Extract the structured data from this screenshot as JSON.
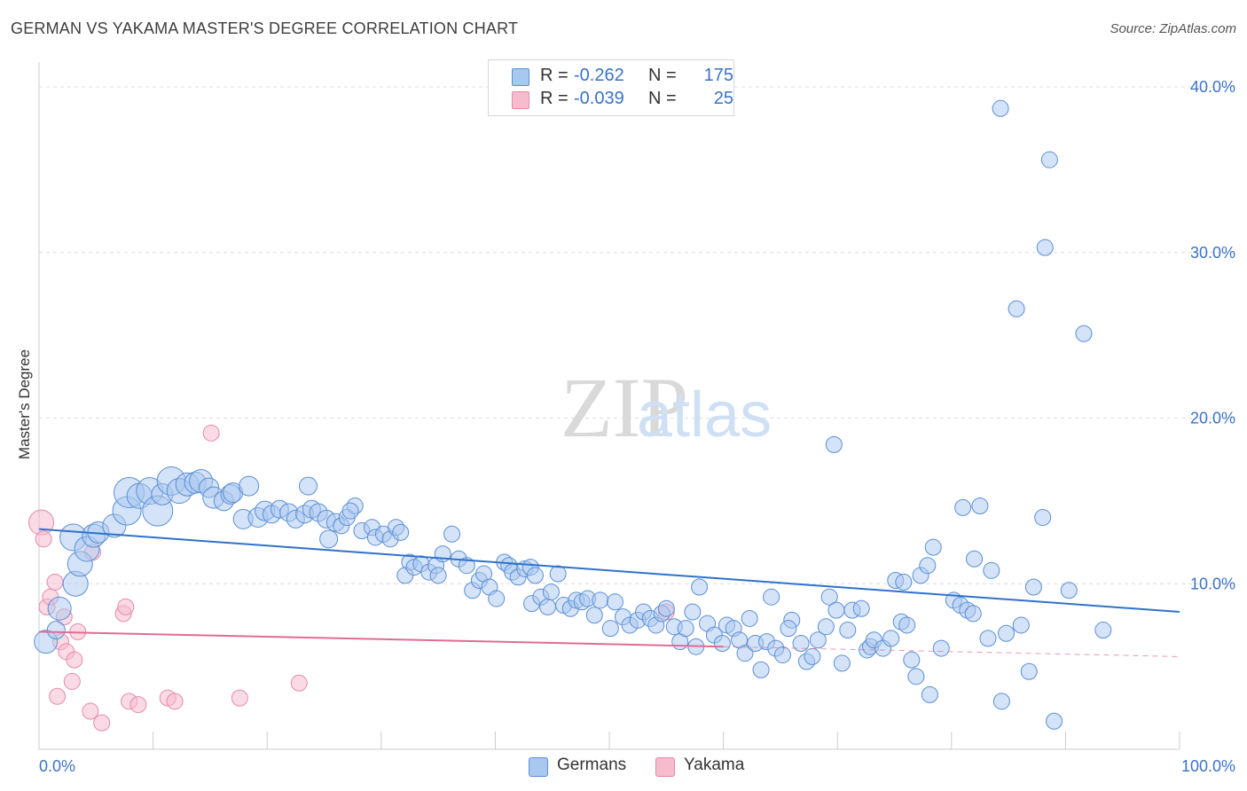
{
  "title": "GERMAN VS YAKAMA MASTER'S DEGREE CORRELATION CHART",
  "source": "Source: ZipAtlas.com",
  "watermark": {
    "zip": "ZIP",
    "atlas": "atlas"
  },
  "colors": {
    "germans_fill": "#a9c8f0",
    "germans_stroke": "#5b8fd6",
    "germans_line": "#2f72cc",
    "yakama_fill": "#f6bccd",
    "yakama_stroke": "#e68aa8",
    "yakama_line": "#e06c94",
    "tick_label": "#3a72c9",
    "grid": "#dcdcdc"
  },
  "legend": {
    "rows": [
      {
        "r_label": "R =",
        "r_value": "-0.262",
        "n_label": "N =",
        "n_value": "175"
      },
      {
        "r_label": "R =",
        "r_value": "-0.039",
        "n_label": "N =",
        "n_value": "25"
      }
    ]
  },
  "bottom_legend": {
    "germans": "Germans",
    "yakama": "Yakama"
  },
  "chart_data": {
    "type": "scatter",
    "title": "GERMAN VS YAKAMA MASTER'S DEGREE CORRELATION CHART",
    "xlabel": "",
    "ylabel": "Master's Degree",
    "xlim": [
      0,
      100
    ],
    "ylim": [
      0,
      41.5
    ],
    "x_tick_labels": [
      "0.0%",
      "100.0%"
    ],
    "y_ticks": [
      10,
      20,
      30,
      40
    ],
    "y_tick_labels": [
      "10.0%",
      "20.0%",
      "30.0%",
      "40.0%"
    ],
    "grid": "horizontal dashed",
    "legend_position": "top-center",
    "series": [
      {
        "name": "Germans",
        "r": -0.262,
        "n": 175,
        "trend": {
          "x": [
            0,
            100
          ],
          "y": [
            13.3,
            8.3
          ]
        },
        "points": [
          [
            0.6,
            6.5,
            13
          ],
          [
            1.5,
            7.2,
            10
          ],
          [
            1.8,
            8.5,
            13
          ],
          [
            3.0,
            12.8,
            15
          ],
          [
            3.2,
            10.0,
            14
          ],
          [
            3.6,
            11.2,
            14
          ],
          [
            4.2,
            12.1,
            14
          ],
          [
            4.8,
            12.9,
            13
          ],
          [
            5.2,
            13.1,
            12
          ],
          [
            6.6,
            13.5,
            13
          ],
          [
            7.7,
            14.4,
            16
          ],
          [
            7.9,
            15.5,
            17
          ],
          [
            8.8,
            15.3,
            14
          ],
          [
            9.7,
            15.6,
            15
          ],
          [
            10.4,
            14.4,
            17
          ],
          [
            10.8,
            15.4,
            12
          ],
          [
            11.6,
            16.2,
            16
          ],
          [
            12.3,
            15.6,
            14
          ],
          [
            13.0,
            16.0,
            13
          ],
          [
            13.7,
            16.1,
            12
          ],
          [
            14.2,
            16.2,
            13
          ],
          [
            14.9,
            15.8,
            11
          ],
          [
            15.3,
            15.2,
            12
          ],
          [
            16.2,
            15.0,
            11
          ],
          [
            16.8,
            15.4,
            11
          ],
          [
            17.0,
            15.5,
            11
          ],
          [
            18.4,
            15.9,
            11
          ],
          [
            17.9,
            13.9,
            11
          ],
          [
            19.2,
            14.0,
            11
          ],
          [
            19.8,
            14.4,
            11
          ],
          [
            20.4,
            14.2,
            10
          ],
          [
            21.1,
            14.5,
            10
          ],
          [
            21.9,
            14.3,
            10
          ],
          [
            22.5,
            13.9,
            10
          ],
          [
            23.3,
            14.2,
            10
          ],
          [
            23.6,
            15.9,
            10
          ],
          [
            23.9,
            14.5,
            10
          ],
          [
            24.5,
            14.3,
            10
          ],
          [
            25.2,
            13.9,
            10
          ],
          [
            25.4,
            12.7,
            10
          ],
          [
            26.0,
            13.7,
            10
          ],
          [
            26.5,
            13.5,
            9
          ],
          [
            27.0,
            14.0,
            9
          ],
          [
            27.7,
            14.7,
            9
          ],
          [
            27.3,
            14.4,
            9
          ],
          [
            28.3,
            13.2,
            9
          ],
          [
            29.2,
            13.4,
            9
          ],
          [
            29.5,
            12.8,
            9
          ],
          [
            30.2,
            13.0,
            9
          ],
          [
            30.8,
            12.7,
            9
          ],
          [
            31.3,
            13.4,
            9
          ],
          [
            31.7,
            13.1,
            9
          ],
          [
            32.5,
            11.3,
            9
          ],
          [
            32.1,
            10.5,
            9
          ],
          [
            32.9,
            11.0,
            9
          ],
          [
            33.5,
            11.2,
            9
          ],
          [
            34.2,
            10.7,
            9
          ],
          [
            34.8,
            11.1,
            9
          ],
          [
            35.4,
            11.8,
            9
          ],
          [
            35.0,
            10.5,
            9
          ],
          [
            36.2,
            13.0,
            9
          ],
          [
            36.8,
            11.5,
            9
          ],
          [
            37.5,
            11.1,
            9
          ],
          [
            38.0,
            9.6,
            9
          ],
          [
            38.6,
            10.2,
            9
          ],
          [
            39.0,
            10.6,
            9
          ],
          [
            39.5,
            9.8,
            9
          ],
          [
            40.1,
            9.1,
            9
          ],
          [
            40.8,
            11.3,
            9
          ],
          [
            41.2,
            11.1,
            9
          ],
          [
            41.5,
            10.7,
            9
          ],
          [
            42.0,
            10.4,
            9
          ],
          [
            42.6,
            10.9,
            9
          ],
          [
            43.1,
            11.0,
            9
          ],
          [
            43.5,
            10.5,
            9
          ],
          [
            43.2,
            8.8,
            9
          ],
          [
            44.0,
            9.2,
            9
          ],
          [
            44.6,
            8.6,
            9
          ],
          [
            44.9,
            9.5,
            9
          ],
          [
            45.5,
            10.6,
            9
          ],
          [
            46.0,
            8.7,
            9
          ],
          [
            46.6,
            8.5,
            9
          ],
          [
            47.1,
            9.0,
            9
          ],
          [
            47.6,
            8.9,
            9
          ],
          [
            48.1,
            9.1,
            9
          ],
          [
            48.7,
            8.1,
            9
          ],
          [
            49.2,
            9.0,
            9
          ],
          [
            50.1,
            7.3,
            9
          ],
          [
            50.5,
            8.9,
            9
          ],
          [
            51.2,
            8.0,
            9
          ],
          [
            51.8,
            7.5,
            9
          ],
          [
            52.5,
            7.8,
            9
          ],
          [
            53.0,
            8.3,
            9
          ],
          [
            53.6,
            7.9,
            9
          ],
          [
            54.1,
            7.5,
            9
          ],
          [
            54.6,
            8.2,
            9
          ],
          [
            55.0,
            8.5,
            9
          ],
          [
            55.7,
            7.4,
            9
          ],
          [
            56.2,
            6.5,
            9
          ],
          [
            56.7,
            7.3,
            9
          ],
          [
            57.3,
            8.3,
            9
          ],
          [
            57.6,
            6.2,
            9
          ],
          [
            57.9,
            9.8,
            9
          ],
          [
            58.6,
            7.6,
            9
          ],
          [
            59.2,
            6.9,
            9
          ],
          [
            59.9,
            6.4,
            9
          ],
          [
            60.3,
            7.5,
            9
          ],
          [
            60.9,
            7.3,
            9
          ],
          [
            61.4,
            6.6,
            9
          ],
          [
            61.9,
            5.8,
            9
          ],
          [
            62.3,
            7.9,
            9
          ],
          [
            62.8,
            6.4,
            9
          ],
          [
            63.3,
            4.8,
            9
          ],
          [
            63.8,
            6.5,
            9
          ],
          [
            64.2,
            9.2,
            9
          ],
          [
            64.6,
            6.1,
            9
          ],
          [
            65.2,
            5.7,
            9
          ],
          [
            66.0,
            7.8,
            9
          ],
          [
            65.7,
            7.3,
            9
          ],
          [
            66.8,
            6.4,
            9
          ],
          [
            67.3,
            5.3,
            9
          ],
          [
            67.8,
            5.6,
            9
          ],
          [
            68.3,
            6.6,
            9
          ],
          [
            69.0,
            7.4,
            9
          ],
          [
            69.3,
            9.2,
            9
          ],
          [
            69.9,
            8.4,
            9
          ],
          [
            70.4,
            5.2,
            9
          ],
          [
            70.9,
            7.2,
            9
          ],
          [
            71.3,
            8.4,
            9
          ],
          [
            72.1,
            8.5,
            9
          ],
          [
            72.6,
            6.0,
            9
          ],
          [
            72.9,
            6.2,
            9
          ],
          [
            73.2,
            6.6,
            9
          ],
          [
            74.0,
            6.1,
            9
          ],
          [
            74.7,
            6.7,
            9
          ],
          [
            75.6,
            7.7,
            9
          ],
          [
            76.1,
            7.5,
            9
          ],
          [
            76.5,
            5.4,
            9
          ],
          [
            76.9,
            4.4,
            9
          ],
          [
            75.1,
            10.2,
            9
          ],
          [
            75.8,
            10.1,
            9
          ],
          [
            77.3,
            10.5,
            9
          ],
          [
            77.9,
            11.1,
            9
          ],
          [
            78.4,
            12.2,
            9
          ],
          [
            78.1,
            3.3,
            9
          ],
          [
            79.1,
            6.1,
            9
          ],
          [
            80.2,
            9.0,
            9
          ],
          [
            80.8,
            8.7,
            9
          ],
          [
            81.0,
            14.6,
            9
          ],
          [
            81.4,
            8.4,
            9
          ],
          [
            81.9,
            8.2,
            9
          ],
          [
            82.5,
            14.7,
            9
          ],
          [
            83.2,
            6.7,
            9
          ],
          [
            83.5,
            10.8,
            9
          ],
          [
            84.4,
            2.9,
            9
          ],
          [
            84.8,
            7.0,
            9
          ],
          [
            84.3,
            38.7,
            9
          ],
          [
            85.7,
            26.6,
            9
          ],
          [
            86.1,
            7.5,
            9
          ],
          [
            86.8,
            4.7,
            9
          ],
          [
            87.2,
            9.8,
            9
          ],
          [
            88.2,
            30.3,
            9
          ],
          [
            88.6,
            35.6,
            9
          ],
          [
            89.0,
            1.7,
            9
          ],
          [
            90.3,
            9.6,
            9
          ],
          [
            91.6,
            25.1,
            9
          ],
          [
            93.3,
            7.2,
            9
          ],
          [
            69.7,
            18.4,
            9
          ],
          [
            88.0,
            14.0,
            9
          ],
          [
            82.0,
            11.5,
            9
          ]
        ]
      },
      {
        "name": "Yakama",
        "r": -0.039,
        "n": 25,
        "trend": {
          "x": [
            0,
            60
          ],
          "y": [
            7.1,
            6.2
          ]
        },
        "trend_extension": {
          "x": [
            60,
            100
          ],
          "y": [
            6.2,
            5.6
          ]
        },
        "points": [
          [
            0.2,
            13.7,
            14
          ],
          [
            0.4,
            12.7,
            9
          ],
          [
            0.7,
            8.6,
            9
          ],
          [
            1.0,
            9.2,
            9
          ],
          [
            1.4,
            10.1,
            9
          ],
          [
            1.6,
            3.2,
            9
          ],
          [
            1.9,
            6.5,
            9
          ],
          [
            2.2,
            8.0,
            9
          ],
          [
            2.4,
            5.9,
            9
          ],
          [
            2.9,
            4.1,
            9
          ],
          [
            3.1,
            5.4,
            9
          ],
          [
            3.4,
            7.1,
            9
          ],
          [
            4.5,
            2.3,
            9
          ],
          [
            4.7,
            11.9,
            9
          ],
          [
            5.5,
            1.6,
            9
          ],
          [
            7.4,
            8.2,
            9
          ],
          [
            7.6,
            8.6,
            9
          ],
          [
            7.9,
            2.9,
            9
          ],
          [
            8.7,
            2.7,
            9
          ],
          [
            11.3,
            3.1,
            9
          ],
          [
            11.9,
            2.9,
            9
          ],
          [
            15.1,
            19.1,
            9
          ],
          [
            17.6,
            3.1,
            9
          ],
          [
            22.8,
            4.0,
            9
          ],
          [
            55.0,
            8.3,
            9
          ]
        ]
      }
    ]
  }
}
